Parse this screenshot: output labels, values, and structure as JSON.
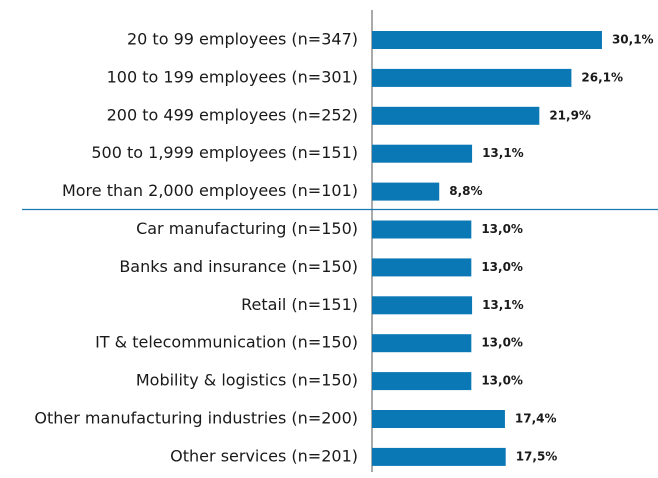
{
  "chart_data": {
    "type": "barh",
    "categories": [
      "20 to 99 employees (n=347)",
      "100 to 199 employees (n=301)",
      "200 to 499 employees (n=252)",
      "500 to 1,999 employees (n=151)",
      "More than 2,000 employees (n=101)",
      "Car manufacturing (n=150)",
      "Banks and insurance (n=150)",
      "Retail (n=151)",
      "IT & telecommunication (n=150)",
      "Mobility & logistics (n=150)",
      "Other manufacturing industries (n=200)",
      "Other services (n=201)"
    ],
    "values": [
      30.1,
      26.1,
      21.9,
      13.1,
      8.8,
      13.0,
      13.0,
      13.1,
      13.0,
      13.0,
      17.4,
      17.5
    ],
    "value_labels": [
      "30,1%",
      "26,1%",
      "21,9%",
      "13,1%",
      "8,8%",
      "13,0%",
      "13,0%",
      "13,1%",
      "13,0%",
      "13,0%",
      "17,4%",
      "17,5%"
    ],
    "color": "#0a78b5"
  }
}
